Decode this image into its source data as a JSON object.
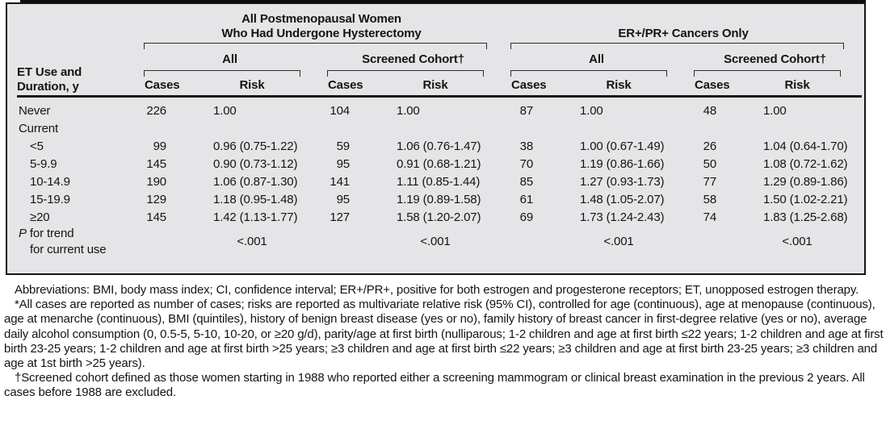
{
  "table": {
    "row_header": {
      "line1": "ET Use and",
      "line2": "Duration, y"
    },
    "groups": [
      {
        "title_line1": "All Postmenopausal Women",
        "title_line2": "Who Had Undergone Hysterectomy",
        "subgroups": [
          "All",
          "Screened Cohort†"
        ]
      },
      {
        "title_line1": "ER+/PR+ Cancers Only",
        "title_line2": "",
        "subgroups": [
          "All",
          "Screened Cohort†"
        ]
      }
    ],
    "value_columns": {
      "cases": "Cases",
      "risk": "Risk"
    },
    "rows": [
      {
        "label": "Never",
        "indent": 0,
        "values": [
          "226",
          "1.00",
          "104",
          "1.00",
          "87",
          "1.00",
          "48",
          "1.00"
        ]
      },
      {
        "label": "Current",
        "indent": 0,
        "values": [
          "",
          "",
          "",
          "",
          "",
          "",
          "",
          ""
        ]
      },
      {
        "label": "<5",
        "indent": 1,
        "values": [
          "99",
          "0.96 (0.75-1.22)",
          "59",
          "1.06 (0.76-1.47)",
          "38",
          "1.00 (0.67-1.49)",
          "26",
          "1.04 (0.64-1.70)"
        ]
      },
      {
        "label": "5-9.9",
        "indent": 1,
        "values": [
          "145",
          "0.90 (0.73-1.12)",
          "95",
          "0.91 (0.68-1.21)",
          "70",
          "1.19 (0.86-1.66)",
          "50",
          "1.08 (0.72-1.62)"
        ]
      },
      {
        "label": "10-14.9",
        "indent": 1,
        "values": [
          "190",
          "1.06 (0.87-1.30)",
          "141",
          "1.11 (0.85-1.44)",
          "85",
          "1.27 (0.93-1.73)",
          "77",
          "1.29 (0.89-1.86)"
        ]
      },
      {
        "label": "15-19.9",
        "indent": 1,
        "values": [
          "129",
          "1.18 (0.95-1.48)",
          "95",
          "1.19 (0.89-1.58)",
          "61",
          "1.48 (1.05-2.07)",
          "58",
          "1.50 (1.02-2.21)"
        ]
      },
      {
        "label": "≥20",
        "indent": 1,
        "values": [
          "145",
          "1.42 (1.13-1.77)",
          "127",
          "1.58 (1.20-2.07)",
          "69",
          "1.73 (1.24-2.43)",
          "74",
          "1.83 (1.25-2.68)"
        ]
      }
    ],
    "p_row": {
      "label_italic": "P",
      "label_rest": " for trend",
      "label_line2": "for current use",
      "values": [
        "<.001",
        "<.001",
        "<.001",
        "<.001"
      ]
    }
  },
  "footnotes": [
    "Abbreviations: BMI, body mass index; CI, confidence interval; ER+/PR+, positive for both estrogen and progesterone receptors; ET, unopposed estrogen therapy.",
    "*All cases are reported as number of cases; risks are reported as multivariate relative risk (95% CI), controlled for age (continuous), age at menopause (continuous), age at menarche (continuous), BMI (quintiles), history of benign breast disease (yes or no), family history of breast cancer in first-degree relative (yes or no), average daily alcohol consumption (0, 0.5-5, 5-10, 10-20, or ≥20 g/d), parity/age at first birth (nulliparous; 1-2 children and age at first birth ≤22 years; 1-2 children and age at first birth 23-25 years; 1-2 children and age at first birth >25 years; ≥3 children and age at first birth ≤22 years; ≥3 children and age at first birth 23-25 years; ≥3 children and age at 1st birth >25 years).",
    "†Screened cohort defined as those women starting in 1988 who reported either a screening mammogram or clinical breast examination in the previous 2 years. All cases before 1988 are excluded."
  ]
}
